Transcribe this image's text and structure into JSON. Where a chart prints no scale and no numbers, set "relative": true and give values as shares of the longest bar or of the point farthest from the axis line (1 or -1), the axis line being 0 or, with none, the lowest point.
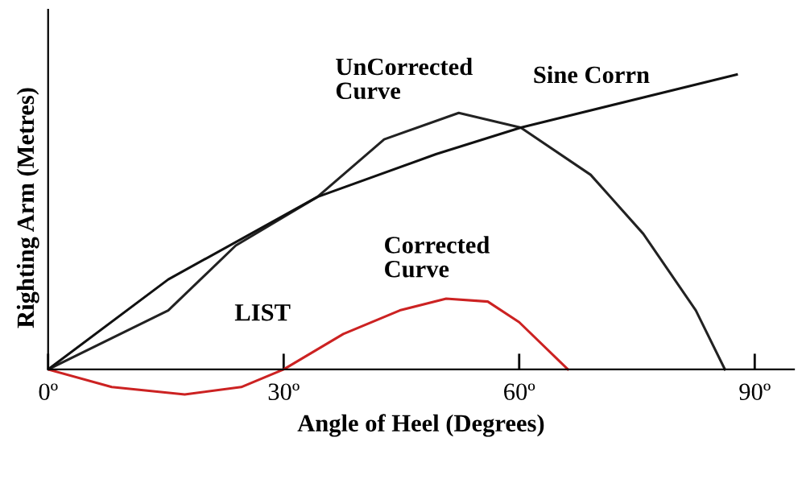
{
  "chart_data": {
    "type": "line",
    "relative": true,
    "xlabel": "Angle of Heel (Degrees)",
    "ylabel": "Righting Arm (Metres)",
    "xlim": [
      0,
      95
    ],
    "xticks": [
      {
        "value": 0,
        "label": "0º"
      },
      {
        "value": 30,
        "label": "30º"
      },
      {
        "value": 60,
        "label": "60º"
      },
      {
        "value": 90,
        "label": "90º"
      }
    ],
    "grid": false,
    "marker": "none",
    "line_style": "solid",
    "series": [
      {
        "color": "#222222",
        "x": [
          0,
          15.3,
          23.9,
          34.3,
          42.8,
          52.3,
          60.2,
          69.1,
          75.8,
          82.5,
          86.2
        ],
        "values": [
          0,
          0.2,
          0.42,
          0.585,
          0.78,
          0.87,
          0.82,
          0.66,
          0.46,
          0.2,
          0
        ]
      },
      {
        "color": "#111111",
        "x": [
          0,
          15.3,
          34.3,
          49.4,
          60.2,
          87.7
        ],
        "values": [
          0,
          0.305,
          0.585,
          0.73,
          0.82,
          1.0
        ]
      },
      {
        "color": "#cc2222",
        "x": [
          0,
          8.1,
          17.4,
          24.6,
          30,
          37.6,
          44.8,
          50.7,
          56,
          60,
          66.2
        ],
        "values": [
          0,
          -0.06,
          -0.085,
          -0.06,
          0,
          0.12,
          0.2,
          0.24,
          0.23,
          0.16,
          0
        ]
      }
    ],
    "annotations": [
      "UnCorrected\nCurve",
      "Sine Corrn",
      "Corrected\nCurve",
      "LIST"
    ]
  }
}
